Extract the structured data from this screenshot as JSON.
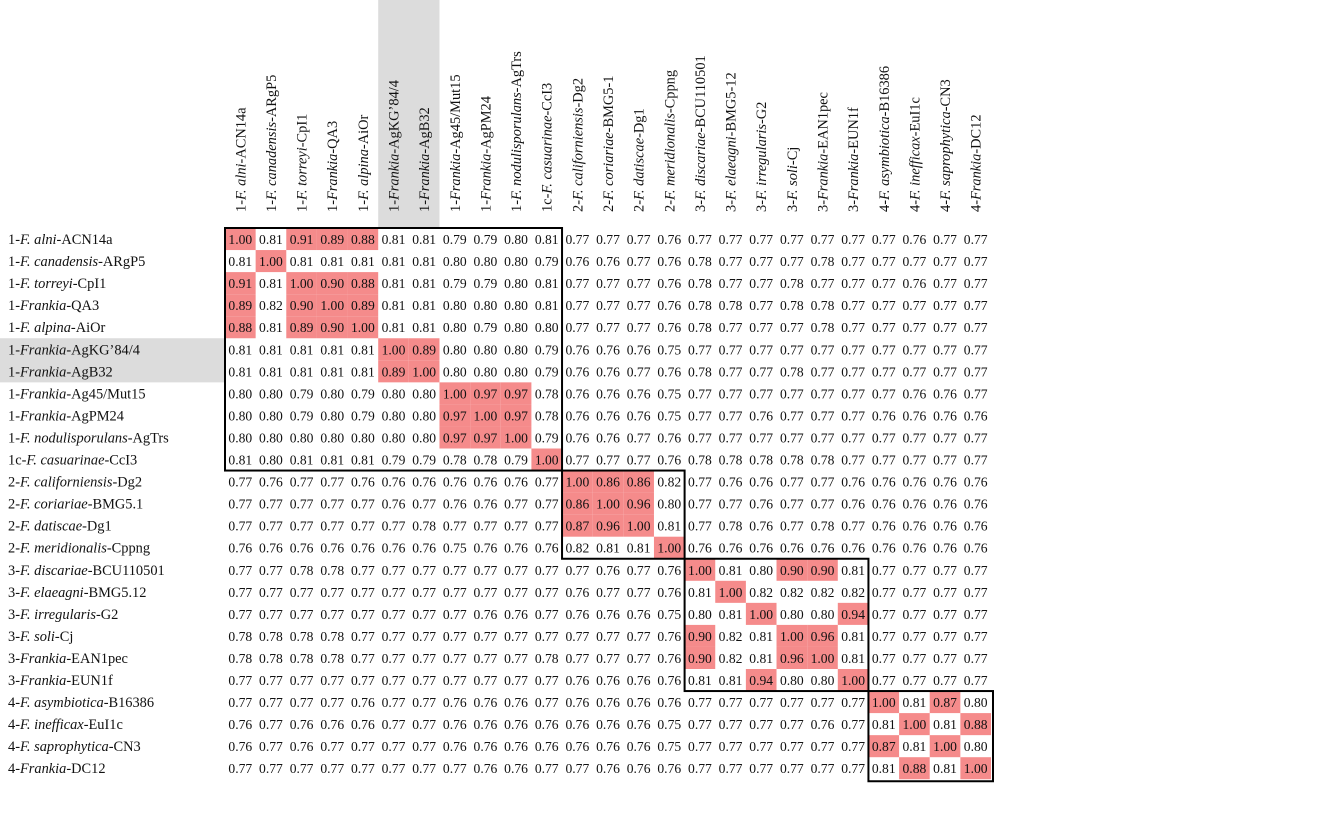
{
  "chart_data": {
    "type": "heatmap",
    "labels": [
      {
        "prefix": "1-",
        "genus": "F. alni",
        "strain": "ACN14a"
      },
      {
        "prefix": "1-",
        "genus": "F. canadensis",
        "strain": "ARgP5"
      },
      {
        "prefix": "1-",
        "genus": "F. torreyi",
        "strain": "CpI1"
      },
      {
        "prefix": "1-",
        "genus": "Frankia",
        "strain": "QA3"
      },
      {
        "prefix": "1-",
        "genus": "F. alpina",
        "strain": "AiOr"
      },
      {
        "prefix": "1-",
        "genus": "Frankia",
        "strain": "AgKG’84/4"
      },
      {
        "prefix": "1-",
        "genus": "Frankia",
        "strain": "AgB32"
      },
      {
        "prefix": "1-",
        "genus": "Frankia",
        "strain": "Ag45/Mut15"
      },
      {
        "prefix": "1-",
        "genus": "Frankia",
        "strain": "AgPM24"
      },
      {
        "prefix": "1-",
        "genus": "F. nodulisporulans",
        "strain": "AgTrs"
      },
      {
        "prefix": "1c-",
        "genus": "F. casuarinae",
        "strain": "CcI3"
      },
      {
        "prefix": "2-",
        "genus": "F. californiensis",
        "strain": "Dg2"
      },
      {
        "prefix": "2-",
        "genus": "F. coriariae",
        "strain": "BMG5.1"
      },
      {
        "prefix": "2-",
        "genus": "F. datiscae",
        "strain": "Dg1"
      },
      {
        "prefix": "2-",
        "genus": "F. meridionalis",
        "strain": "Cppng"
      },
      {
        "prefix": "3-",
        "genus": "F. discariae",
        "strain": "BCU110501"
      },
      {
        "prefix": "3-",
        "genus": "F. elaeagni",
        "strain": "BMG5.12"
      },
      {
        "prefix": "3-",
        "genus": "F. irregularis",
        "strain": "G2"
      },
      {
        "prefix": "3-",
        "genus": "F. soli",
        "strain": "Cj"
      },
      {
        "prefix": "3-",
        "genus": "Frankia",
        "strain": "EAN1pec"
      },
      {
        "prefix": "3-",
        "genus": "Frankia",
        "strain": "EUN1f"
      },
      {
        "prefix": "4-",
        "genus": "F. asymbiotica",
        "strain": "B16386"
      },
      {
        "prefix": "4-",
        "genus": "F. inefficax",
        "strain": "EuI1c"
      },
      {
        "prefix": "4-",
        "genus": "F. saprophytica",
        "strain": "CN3"
      },
      {
        "prefix": "4-",
        "genus": "Frankia",
        "strain": "DC12"
      }
    ],
    "column_strain_overrides": {
      "12": "BMG5-1",
      "16": "BMG5-12"
    },
    "matrix": [
      [
        "1.00",
        "0.81",
        "0.91",
        "0.89",
        "0.88",
        "0.81",
        "0.81",
        "0.79",
        "0.79",
        "0.80",
        "0.81",
        "0.77",
        "0.77",
        "0.77",
        "0.76",
        "0.77",
        "0.77",
        "0.77",
        "0.77",
        "0.77",
        "0.77",
        "0.77",
        "0.76",
        "0.77",
        "0.77"
      ],
      [
        "0.81",
        "1.00",
        "0.81",
        "0.81",
        "0.81",
        "0.81",
        "0.81",
        "0.80",
        "0.80",
        "0.80",
        "0.79",
        "0.76",
        "0.76",
        "0.77",
        "0.76",
        "0.78",
        "0.77",
        "0.77",
        "0.77",
        "0.78",
        "0.77",
        "0.77",
        "0.77",
        "0.77",
        "0.77"
      ],
      [
        "0.91",
        "0.81",
        "1.00",
        "0.90",
        "0.88",
        "0.81",
        "0.81",
        "0.79",
        "0.79",
        "0.80",
        "0.81",
        "0.77",
        "0.77",
        "0.77",
        "0.76",
        "0.78",
        "0.77",
        "0.77",
        "0.78",
        "0.77",
        "0.77",
        "0.77",
        "0.76",
        "0.77",
        "0.77"
      ],
      [
        "0.89",
        "0.82",
        "0.90",
        "1.00",
        "0.89",
        "0.81",
        "0.81",
        "0.80",
        "0.80",
        "0.80",
        "0.81",
        "0.77",
        "0.77",
        "0.77",
        "0.76",
        "0.78",
        "0.78",
        "0.77",
        "0.78",
        "0.78",
        "0.77",
        "0.77",
        "0.77",
        "0.77",
        "0.77"
      ],
      [
        "0.88",
        "0.81",
        "0.89",
        "0.90",
        "1.00",
        "0.81",
        "0.81",
        "0.80",
        "0.79",
        "0.80",
        "0.80",
        "0.77",
        "0.77",
        "0.77",
        "0.76",
        "0.78",
        "0.77",
        "0.77",
        "0.77",
        "0.78",
        "0.77",
        "0.77",
        "0.77",
        "0.77",
        "0.77"
      ],
      [
        "0.81",
        "0.81",
        "0.81",
        "0.81",
        "0.81",
        "1.00",
        "0.89",
        "0.80",
        "0.80",
        "0.80",
        "0.79",
        "0.76",
        "0.76",
        "0.76",
        "0.75",
        "0.77",
        "0.77",
        "0.77",
        "0.77",
        "0.77",
        "0.77",
        "0.77",
        "0.77",
        "0.77",
        "0.77"
      ],
      [
        "0.81",
        "0.81",
        "0.81",
        "0.81",
        "0.81",
        "0.89",
        "1.00",
        "0.80",
        "0.80",
        "0.80",
        "0.79",
        "0.76",
        "0.76",
        "0.77",
        "0.76",
        "0.78",
        "0.77",
        "0.77",
        "0.78",
        "0.77",
        "0.77",
        "0.77",
        "0.77",
        "0.77",
        "0.77"
      ],
      [
        "0.80",
        "0.80",
        "0.79",
        "0.80",
        "0.79",
        "0.80",
        "0.80",
        "1.00",
        "0.97",
        "0.97",
        "0.78",
        "0.76",
        "0.76",
        "0.76",
        "0.75",
        "0.77",
        "0.77",
        "0.77",
        "0.77",
        "0.77",
        "0.77",
        "0.77",
        "0.76",
        "0.76",
        "0.77"
      ],
      [
        "0.80",
        "0.80",
        "0.79",
        "0.80",
        "0.79",
        "0.80",
        "0.80",
        "0.97",
        "1.00",
        "0.97",
        "0.78",
        "0.76",
        "0.76",
        "0.76",
        "0.75",
        "0.77",
        "0.77",
        "0.76",
        "0.77",
        "0.77",
        "0.77",
        "0.76",
        "0.76",
        "0.76",
        "0.76"
      ],
      [
        "0.80",
        "0.80",
        "0.80",
        "0.80",
        "0.80",
        "0.80",
        "0.80",
        "0.97",
        "0.97",
        "1.00",
        "0.79",
        "0.76",
        "0.76",
        "0.77",
        "0.76",
        "0.77",
        "0.77",
        "0.77",
        "0.77",
        "0.77",
        "0.77",
        "0.77",
        "0.77",
        "0.77",
        "0.77"
      ],
      [
        "0.81",
        "0.80",
        "0.81",
        "0.81",
        "0.81",
        "0.79",
        "0.79",
        "0.78",
        "0.78",
        "0.79",
        "1.00",
        "0.77",
        "0.77",
        "0.77",
        "0.76",
        "0.78",
        "0.78",
        "0.78",
        "0.78",
        "0.78",
        "0.77",
        "0.77",
        "0.77",
        "0.77",
        "0.77"
      ],
      [
        "0.77",
        "0.76",
        "0.77",
        "0.77",
        "0.76",
        "0.76",
        "0.76",
        "0.76",
        "0.76",
        "0.76",
        "0.77",
        "1.00",
        "0.86",
        "0.86",
        "0.82",
        "0.77",
        "0.76",
        "0.76",
        "0.77",
        "0.77",
        "0.76",
        "0.76",
        "0.76",
        "0.76",
        "0.76"
      ],
      [
        "0.77",
        "0.77",
        "0.77",
        "0.77",
        "0.77",
        "0.76",
        "0.77",
        "0.76",
        "0.76",
        "0.77",
        "0.77",
        "0.86",
        "1.00",
        "0.96",
        "0.80",
        "0.77",
        "0.77",
        "0.76",
        "0.77",
        "0.77",
        "0.76",
        "0.76",
        "0.76",
        "0.76",
        "0.76"
      ],
      [
        "0.77",
        "0.77",
        "0.77",
        "0.77",
        "0.77",
        "0.77",
        "0.78",
        "0.77",
        "0.77",
        "0.77",
        "0.77",
        "0.87",
        "0.96",
        "1.00",
        "0.81",
        "0.77",
        "0.78",
        "0.76",
        "0.77",
        "0.78",
        "0.77",
        "0.76",
        "0.76",
        "0.76",
        "0.76"
      ],
      [
        "0.76",
        "0.76",
        "0.76",
        "0.76",
        "0.76",
        "0.76",
        "0.76",
        "0.75",
        "0.76",
        "0.76",
        "0.76",
        "0.82",
        "0.81",
        "0.81",
        "1.00",
        "0.76",
        "0.76",
        "0.76",
        "0.76",
        "0.76",
        "0.76",
        "0.76",
        "0.76",
        "0.76",
        "0.76"
      ],
      [
        "0.77",
        "0.77",
        "0.78",
        "0.78",
        "0.77",
        "0.77",
        "0.77",
        "0.77",
        "0.77",
        "0.77",
        "0.77",
        "0.77",
        "0.76",
        "0.77",
        "0.76",
        "1.00",
        "0.81",
        "0.80",
        "0.90",
        "0.90",
        "0.81",
        "0.77",
        "0.77",
        "0.77",
        "0.77"
      ],
      [
        "0.77",
        "0.77",
        "0.77",
        "0.77",
        "0.77",
        "0.77",
        "0.77",
        "0.77",
        "0.77",
        "0.77",
        "0.77",
        "0.76",
        "0.77",
        "0.77",
        "0.76",
        "0.81",
        "1.00",
        "0.82",
        "0.82",
        "0.82",
        "0.82",
        "0.77",
        "0.77",
        "0.77",
        "0.77"
      ],
      [
        "0.77",
        "0.77",
        "0.77",
        "0.77",
        "0.77",
        "0.77",
        "0.77",
        "0.77",
        "0.76",
        "0.76",
        "0.77",
        "0.76",
        "0.76",
        "0.76",
        "0.75",
        "0.80",
        "0.81",
        "1.00",
        "0.80",
        "0.80",
        "0.94",
        "0.77",
        "0.77",
        "0.77",
        "0.77"
      ],
      [
        "0.78",
        "0.78",
        "0.78",
        "0.78",
        "0.77",
        "0.77",
        "0.77",
        "0.77",
        "0.77",
        "0.77",
        "0.77",
        "0.77",
        "0.77",
        "0.77",
        "0.76",
        "0.90",
        "0.82",
        "0.81",
        "1.00",
        "0.96",
        "0.81",
        "0.77",
        "0.77",
        "0.77",
        "0.77"
      ],
      [
        "0.78",
        "0.78",
        "0.78",
        "0.78",
        "0.77",
        "0.77",
        "0.77",
        "0.77",
        "0.77",
        "0.77",
        "0.78",
        "0.77",
        "0.77",
        "0.77",
        "0.76",
        "0.90",
        "0.82",
        "0.81",
        "0.96",
        "1.00",
        "0.81",
        "0.77",
        "0.77",
        "0.77",
        "0.77"
      ],
      [
        "0.77",
        "0.77",
        "0.77",
        "0.77",
        "0.77",
        "0.77",
        "0.77",
        "0.77",
        "0.77",
        "0.77",
        "0.77",
        "0.76",
        "0.76",
        "0.76",
        "0.76",
        "0.81",
        "0.81",
        "0.94",
        "0.80",
        "0.80",
        "1.00",
        "0.77",
        "0.77",
        "0.77",
        "0.77"
      ],
      [
        "0.77",
        "0.77",
        "0.77",
        "0.77",
        "0.76",
        "0.77",
        "0.77",
        "0.76",
        "0.76",
        "0.76",
        "0.77",
        "0.76",
        "0.76",
        "0.76",
        "0.76",
        "0.77",
        "0.77",
        "0.77",
        "0.77",
        "0.77",
        "0.77",
        "1.00",
        "0.81",
        "0.87",
        "0.80"
      ],
      [
        "0.76",
        "0.77",
        "0.76",
        "0.76",
        "0.76",
        "0.77",
        "0.77",
        "0.76",
        "0.76",
        "0.76",
        "0.76",
        "0.76",
        "0.76",
        "0.76",
        "0.75",
        "0.77",
        "0.77",
        "0.77",
        "0.77",
        "0.76",
        "0.77",
        "0.81",
        "1.00",
        "0.81",
        "0.88"
      ],
      [
        "0.76",
        "0.77",
        "0.76",
        "0.77",
        "0.77",
        "0.77",
        "0.77",
        "0.76",
        "0.76",
        "0.76",
        "0.76",
        "0.76",
        "0.76",
        "0.76",
        "0.75",
        "0.77",
        "0.77",
        "0.77",
        "0.77",
        "0.77",
        "0.77",
        "0.87",
        "0.81",
        "1.00",
        "0.80"
      ],
      [
        "0.77",
        "0.77",
        "0.77",
        "0.77",
        "0.77",
        "0.77",
        "0.77",
        "0.77",
        "0.76",
        "0.76",
        "0.77",
        "0.77",
        "0.76",
        "0.76",
        "0.76",
        "0.77",
        "0.77",
        "0.77",
        "0.77",
        "0.77",
        "0.77",
        "0.81",
        "0.88",
        "0.81",
        "1.00"
      ]
    ],
    "highlight_threshold": 0.86,
    "highlight_color": "#f58b8b",
    "grey_highlight_indices": [
      5,
      6
    ],
    "grey_highlight_color": "#dcdcdc",
    "cluster_blocks": [
      [
        0,
        10
      ],
      [
        11,
        14
      ],
      [
        15,
        20
      ],
      [
        21,
        24
      ]
    ],
    "grid": false,
    "legend": "none"
  }
}
